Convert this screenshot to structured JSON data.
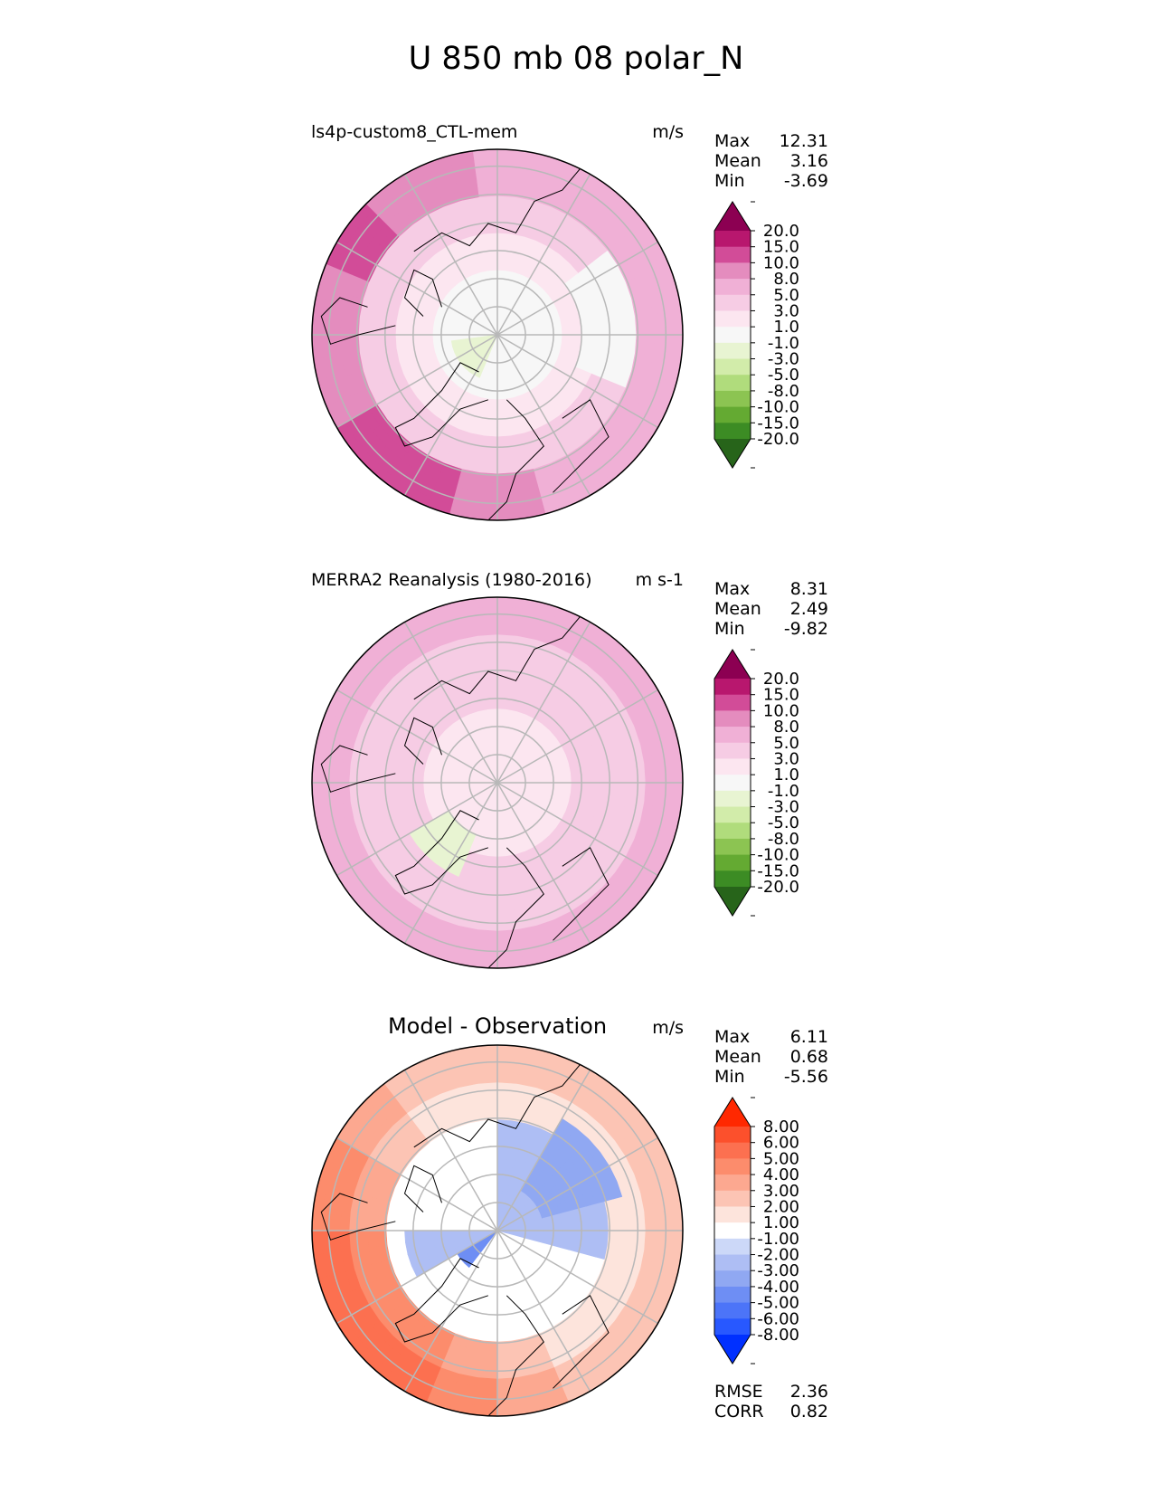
{
  "figure_title": "U 850 mb 08 polar_N",
  "colors": {
    "seq_fill": [
      "#27641a",
      "#3c8c24",
      "#64aa32",
      "#8cc452",
      "#b0dc7c",
      "#d2ecaa",
      "#e8f4d2",
      "#f7f7f7",
      "#fce6f0",
      "#f6cce4",
      "#f0b0d6",
      "#e48cbe",
      "#d24c98",
      "#b8176e",
      "#8c0052"
    ],
    "diff_fill": [
      "#0030ff",
      "#2858ff",
      "#4c74f8",
      "#6e8ef4",
      "#90a8f2",
      "#aebef4",
      "#ccd8f8",
      "#ffffff",
      "#fde4dc",
      "#fcc4b4",
      "#fca890",
      "#fc8c6c",
      "#fc7050",
      "#fc502c",
      "#ff2800"
    ],
    "boundary": "#000000",
    "grid": "#b8b8b8"
  },
  "chart_data": [
    {
      "type": "heatmap",
      "projection": "north-polar-stereographic",
      "title": "ls4p-custom8_CTL-mem",
      "units": "m/s",
      "stats": [
        {
          "label": "Max",
          "value": "12.31"
        },
        {
          "label": "Mean",
          "value": "3.16"
        },
        {
          "label": "Min",
          "value": "-3.69"
        }
      ],
      "colorbar": {
        "ticks": [
          "20.0",
          "15.0",
          "10.0",
          "8.0",
          "5.0",
          "3.0",
          "1.0",
          "-1.0",
          "-3.0",
          "-5.0",
          "-8.0",
          "-10.0",
          "-15.0",
          "-20.0"
        ],
        "extend": "both",
        "palette": "seq_fill"
      }
    },
    {
      "type": "heatmap",
      "projection": "north-polar-stereographic",
      "title": "MERRA2 Reanalysis (1980-2016)",
      "units": "m s-1",
      "stats": [
        {
          "label": "Max",
          "value": "8.31"
        },
        {
          "label": "Mean",
          "value": "2.49"
        },
        {
          "label": "Min",
          "value": "-9.82"
        }
      ],
      "colorbar": {
        "ticks": [
          "20.0",
          "15.0",
          "10.0",
          "8.0",
          "5.0",
          "3.0",
          "1.0",
          "-1.0",
          "-3.0",
          "-5.0",
          "-8.0",
          "-10.0",
          "-15.0",
          "-20.0"
        ],
        "extend": "both",
        "palette": "seq_fill"
      }
    },
    {
      "type": "heatmap",
      "projection": "north-polar-stereographic",
      "title": "Model - Observation",
      "units": "m/s",
      "stats": [
        {
          "label": "Max",
          "value": "6.11"
        },
        {
          "label": "Mean",
          "value": "0.68"
        },
        {
          "label": "Min",
          "value": "-5.56"
        }
      ],
      "colorbar": {
        "ticks": [
          "8.00",
          "6.00",
          "5.00",
          "4.00",
          "3.00",
          "2.00",
          "1.00",
          "-1.00",
          "-2.00",
          "-3.00",
          "-4.00",
          "-5.00",
          "-6.00",
          "-8.00"
        ],
        "extend": "both",
        "palette": "diff_fill"
      },
      "metrics": [
        {
          "label": "RMSE",
          "value": "2.36"
        },
        {
          "label": "CORR",
          "value": "0.82"
        }
      ]
    }
  ]
}
